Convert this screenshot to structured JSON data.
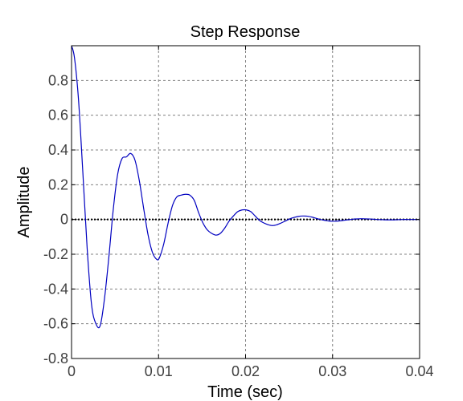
{
  "chart_data": {
    "type": "line",
    "title": "Step Response",
    "xlabel": "Time (sec)",
    "ylabel": "Amplitude",
    "xlim": [
      0,
      0.04
    ],
    "ylim": [
      -0.8,
      1.0
    ],
    "xticks": [
      0,
      0.01,
      0.02,
      0.03,
      0.04
    ],
    "xtick_labels": [
      "0",
      "0.01",
      "0.02",
      "0.03",
      "0.04"
    ],
    "yticks": [
      -0.8,
      -0.6,
      -0.4,
      -0.2,
      0,
      0.2,
      0.4,
      0.6,
      0.8
    ],
    "ytick_labels": [
      "-0.8",
      "-0.6",
      "-0.4",
      "-0.2",
      "0",
      "0.2",
      "0.4",
      "0.6",
      "0.8"
    ],
    "grid": true,
    "reference_line": {
      "y": 0,
      "style": "dotted",
      "color": "#000000"
    },
    "series": [
      {
        "color": "#0000c0",
        "x": [
          0,
          0.00034,
          0.0008,
          0.0013,
          0.0018,
          0.0023,
          0.0028,
          0.0033,
          0.0038,
          0.0043,
          0.0048,
          0.0053,
          0.0058,
          0.0063,
          0.0068,
          0.0073,
          0.0078,
          0.0083,
          0.0088,
          0.0093,
          0.0098,
          0.0101,
          0.0106,
          0.0111,
          0.0116,
          0.0121,
          0.0126,
          0.0131,
          0.0136,
          0.0141,
          0.0146,
          0.0151,
          0.0156,
          0.0161,
          0.0166,
          0.0171,
          0.0176,
          0.0181,
          0.0186,
          0.0191,
          0.0196,
          0.0201,
          0.0206,
          0.0211,
          0.0216,
          0.0221,
          0.0226,
          0.0231,
          0.0236,
          0.0241,
          0.0246,
          0.0251,
          0.0256,
          0.0261,
          0.0266,
          0.0271,
          0.0276,
          0.0281,
          0.0286,
          0.0291,
          0.0296,
          0.0301,
          0.0306,
          0.0311,
          0.0316,
          0.0321,
          0.0326,
          0.0331,
          0.0336,
          0.0341,
          0.0346,
          0.0351,
          0.0356,
          0.0361,
          0.0366,
          0.0371,
          0.0376,
          0.0381,
          0.0386,
          0.0391,
          0.0396,
          0.04
        ],
        "y": [
          1.0,
          0.93,
          0.69,
          0.27,
          -0.17,
          -0.49,
          -0.6,
          -0.61,
          -0.45,
          -0.21,
          0.06,
          0.26,
          0.35,
          0.36,
          0.38,
          0.34,
          0.22,
          0.06,
          -0.09,
          -0.19,
          -0.23,
          -0.22,
          -0.14,
          -0.02,
          0.08,
          0.13,
          0.14,
          0.145,
          0.14,
          0.11,
          0.04,
          -0.02,
          -0.06,
          -0.08,
          -0.09,
          -0.08,
          -0.05,
          -0.01,
          0.02,
          0.045,
          0.055,
          0.055,
          0.045,
          0.02,
          -0.005,
          -0.02,
          -0.03,
          -0.035,
          -0.03,
          -0.02,
          -0.008,
          0.004,
          0.012,
          0.018,
          0.02,
          0.019,
          0.014,
          0.007,
          0.0,
          -0.005,
          -0.009,
          -0.01,
          -0.009,
          -0.006,
          -0.003,
          0.0,
          0.003,
          0.004,
          0.004,
          0.003,
          0.002,
          0.0,
          -0.001,
          -0.002,
          -0.002,
          -0.002,
          -0.001,
          0.0,
          0.0,
          0.0,
          0.0,
          0.0
        ]
      }
    ]
  }
}
